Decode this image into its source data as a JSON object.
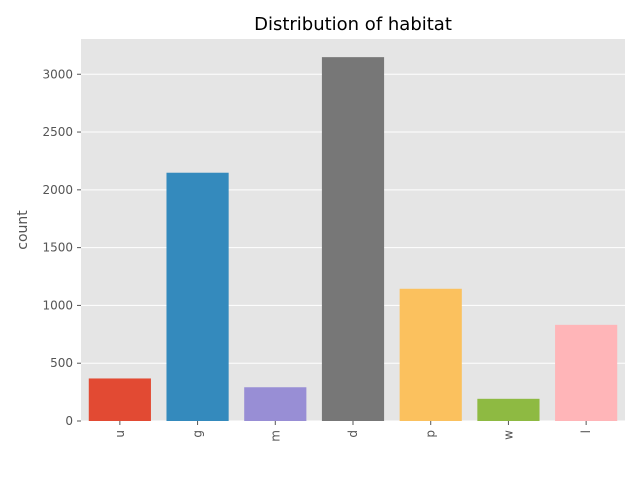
{
  "chart_data": {
    "type": "bar",
    "title": "Distribution of habitat",
    "xlabel": "",
    "ylabel": "count",
    "categories": [
      "u",
      "g",
      "m",
      "d",
      "p",
      "w",
      "l"
    ],
    "values": [
      368,
      2148,
      292,
      3148,
      1144,
      192,
      832
    ],
    "colors": [
      "#E24A33",
      "#348ABD",
      "#988ED5",
      "#777777",
      "#FBC15E",
      "#8EBA42",
      "#FFB5B8"
    ],
    "yticks": [
      0,
      500,
      1000,
      1500,
      2000,
      2500,
      3000
    ],
    "ylim": [
      0,
      3305
    ],
    "grid": true,
    "background": "#E5E5E5",
    "gridColor": "#FFFFFF"
  }
}
